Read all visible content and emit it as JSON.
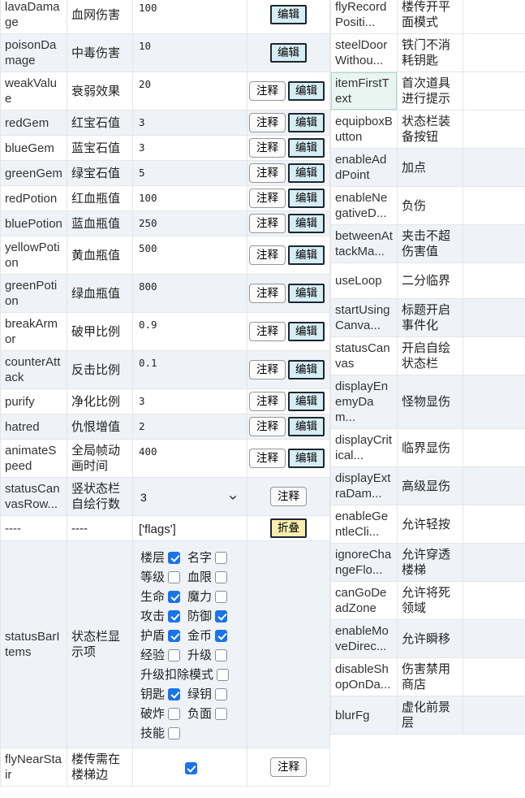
{
  "colors": {
    "checkbox_checked": "#1a73e8",
    "row_stripe": "#eff3f7",
    "grid_line": "#e4e6e8",
    "edit_button_bg": "#d6edf4",
    "dark_button_border": "#1c2730",
    "comment_button_bg": "#fbfbfb",
    "comment_button_border": "#979797",
    "collapse_button_bg": "#f7edae",
    "highlight_cell_bg": "#e9f5f1",
    "highlight_cell_border": "#aed9d0"
  },
  "buttons": {
    "comment": "注释",
    "edit": "编辑",
    "collapse": "折叠"
  },
  "left_table": {
    "rows": [
      {
        "key": "lavaDamage",
        "label": "血网伤害",
        "type": "text",
        "value": "100",
        "actions": [
          "edit"
        ]
      },
      {
        "key": "poisonDamage",
        "label": "中毒伤害",
        "type": "text",
        "value": "10",
        "actions": [
          "edit"
        ]
      },
      {
        "key": "weakValue",
        "label": "衰弱效果",
        "type": "text",
        "value": "20",
        "actions": [
          "comment",
          "edit"
        ]
      },
      {
        "key": "redGem",
        "label": "红宝石值",
        "type": "text",
        "value": "3",
        "actions": [
          "comment",
          "edit"
        ]
      },
      {
        "key": "blueGem",
        "label": "蓝宝石值",
        "type": "text",
        "value": "3",
        "actions": [
          "comment",
          "edit"
        ]
      },
      {
        "key": "greenGem",
        "label": "绿宝石值",
        "type": "text",
        "value": "5",
        "actions": [
          "comment",
          "edit"
        ]
      },
      {
        "key": "redPotion",
        "label": "红血瓶值",
        "type": "text",
        "value": "100",
        "actions": [
          "comment",
          "edit"
        ]
      },
      {
        "key": "bluePotion",
        "label": "蓝血瓶值",
        "type": "text",
        "value": "250",
        "actions": [
          "comment",
          "edit"
        ]
      },
      {
        "key": "yellowPotion",
        "label": "黄血瓶值",
        "type": "text",
        "value": "500",
        "actions": [
          "comment",
          "edit"
        ]
      },
      {
        "key": "greenPotion",
        "label": "绿血瓶值",
        "type": "text",
        "value": "800",
        "actions": [
          "comment",
          "edit"
        ]
      },
      {
        "key": "breakArmor",
        "label": "破甲比例",
        "type": "text",
        "value": "0.9",
        "actions": [
          "comment",
          "edit"
        ]
      },
      {
        "key": "counterAttack",
        "label": "反击比例",
        "type": "text",
        "value": "0.1",
        "actions": [
          "comment",
          "edit"
        ]
      },
      {
        "key": "purify",
        "label": "净化比例",
        "type": "text",
        "value": "3",
        "actions": [
          "comment",
          "edit"
        ]
      },
      {
        "key": "hatred",
        "label": "仇恨增值",
        "type": "text",
        "value": "2",
        "actions": [
          "comment",
          "edit"
        ]
      },
      {
        "key": "animateSpeed",
        "label": "全局帧动画时间",
        "type": "text",
        "value": "400",
        "actions": [
          "comment",
          "edit"
        ]
      },
      {
        "key": "statusCanvasRow...",
        "label": "竖状态栏自绘行数",
        "type": "select",
        "value": "3",
        "actions": [
          "comment"
        ]
      },
      {
        "key": "----",
        "label": "----",
        "type": "separator",
        "value": "['flags']",
        "actions": [
          "collapse"
        ]
      },
      {
        "key": "statusBarItems",
        "label": "状态栏显示项",
        "type": "checklist",
        "actions": [],
        "items": [
          {
            "label": "楼层",
            "checked": true
          },
          {
            "label": "名字",
            "checked": false
          },
          {
            "label": "等级",
            "checked": false
          },
          {
            "label": "血限",
            "checked": false
          },
          {
            "label": "生命",
            "checked": true
          },
          {
            "label": "魔力",
            "checked": false
          },
          {
            "label": "攻击",
            "checked": true
          },
          {
            "label": "防御",
            "checked": true
          },
          {
            "label": "护盾",
            "checked": true
          },
          {
            "label": "金币",
            "checked": true
          },
          {
            "label": "经验",
            "checked": false
          },
          {
            "label": "升级",
            "checked": false
          },
          {
            "label": "升级扣除模式",
            "checked": false
          },
          {
            "label": "钥匙",
            "checked": true
          },
          {
            "label": "绿钥",
            "checked": false
          },
          {
            "label": "破炸",
            "checked": false
          },
          {
            "label": "负面",
            "checked": false
          },
          {
            "label": "技能",
            "checked": false
          }
        ]
      },
      {
        "key": "flyNearStair",
        "label": "楼传需在楼梯边",
        "type": "checkbox",
        "checked": true,
        "actions": [
          "comment"
        ]
      }
    ]
  },
  "right_table": {
    "rows": [
      {
        "key": "flyRecordPositi...",
        "label": "楼传开平面模式",
        "checked": false
      },
      {
        "key": "steelDoorWithou...",
        "label": "铁门不消耗钥匙",
        "checked": false
      },
      {
        "key": "itemFirstText",
        "label": "首次道具进行提示",
        "checked": false,
        "highlighted": true
      },
      {
        "key": "equipboxButton",
        "label": "状态栏装备按钮",
        "checked": false
      },
      {
        "key": "enableAddPoint",
        "label": "加点",
        "checked": false
      },
      {
        "key": "enableNegativeD...",
        "label": "负伤",
        "checked": false
      },
      {
        "key": "betweenAttackMa...",
        "label": "夹击不超伤害值",
        "checked": false
      },
      {
        "key": "useLoop",
        "label": "二分临界",
        "checked": false
      },
      {
        "key": "startUsingCanva...",
        "label": "标题开启事件化",
        "checked": false
      },
      {
        "key": "statusCanvas",
        "label": "开启自绘状态栏",
        "checked": false
      },
      {
        "key": "displayEnemyDam...",
        "label": "怪物显伤",
        "checked": true
      },
      {
        "key": "displayCritical...",
        "label": "临界显伤",
        "checked": true
      },
      {
        "key": "displayExtraDam...",
        "label": "高级显伤",
        "checked": true
      },
      {
        "key": "enableGentleCli...",
        "label": "允许轻按",
        "checked": true
      },
      {
        "key": "ignoreChangeFlo...",
        "label": "允许穿透楼梯",
        "checked": true
      },
      {
        "key": "canGoDeadZone",
        "label": "允许将死领域",
        "checked": false
      },
      {
        "key": "enableMoveDirec...",
        "label": "允许瞬移",
        "checked": true
      },
      {
        "key": "disableShopOnDa...",
        "label": "伤害禁用商店",
        "checked": false
      },
      {
        "key": "blurFg",
        "label": "虚化前景层",
        "checked": false
      }
    ]
  }
}
